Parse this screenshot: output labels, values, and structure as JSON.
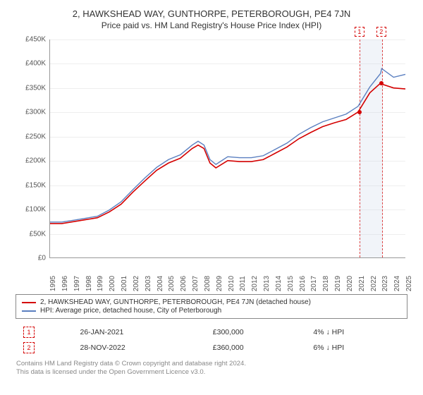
{
  "title": "2, HAWKSHEAD WAY, GUNTHORPE, PETERBOROUGH, PE4 7JN",
  "subtitle": "Price paid vs. HM Land Registry's House Price Index (HPI)",
  "chart": {
    "type": "line",
    "background_color": "#ffffff",
    "grid_color": "#eeeeee",
    "axis_color": "#999999",
    "label_fontsize": 10,
    "x_min": 1995,
    "x_max": 2025,
    "y_min": 0,
    "y_max": 450000,
    "y_ticks": [
      0,
      50000,
      100000,
      150000,
      200000,
      250000,
      300000,
      350000,
      400000,
      450000
    ],
    "y_tick_labels": [
      "£0",
      "£50K",
      "£100K",
      "£150K",
      "£200K",
      "£250K",
      "£300K",
      "£350K",
      "£400K",
      "£450K"
    ],
    "x_ticks": [
      1995,
      1996,
      1997,
      1998,
      1999,
      2000,
      2001,
      2002,
      2003,
      2004,
      2005,
      2006,
      2007,
      2008,
      2009,
      2010,
      2011,
      2012,
      2013,
      2014,
      2015,
      2016,
      2017,
      2018,
      2019,
      2020,
      2021,
      2022,
      2023,
      2024,
      2025
    ],
    "highlight_band": {
      "x_start": 2021.07,
      "x_end": 2022.91
    },
    "series": [
      {
        "name": "price_paid",
        "label": "2, HAWKSHEAD WAY, GUNTHORPE, PETERBOROUGH, PE4 7JN (detached house)",
        "color": "#d40000",
        "line_width": 1.6,
        "data": [
          [
            1995,
            70000
          ],
          [
            1996,
            70000
          ],
          [
            1997,
            74000
          ],
          [
            1998,
            78000
          ],
          [
            1999,
            82000
          ],
          [
            2000,
            94000
          ],
          [
            2001,
            110000
          ],
          [
            2002,
            135000
          ],
          [
            2003,
            158000
          ],
          [
            2004,
            180000
          ],
          [
            2005,
            195000
          ],
          [
            2006,
            205000
          ],
          [
            2007,
            225000
          ],
          [
            2007.5,
            232000
          ],
          [
            2008,
            225000
          ],
          [
            2008.5,
            195000
          ],
          [
            2009,
            185000
          ],
          [
            2010,
            200000
          ],
          [
            2011,
            198000
          ],
          [
            2012,
            198000
          ],
          [
            2013,
            202000
          ],
          [
            2014,
            215000
          ],
          [
            2015,
            228000
          ],
          [
            2016,
            245000
          ],
          [
            2017,
            258000
          ],
          [
            2018,
            270000
          ],
          [
            2019,
            278000
          ],
          [
            2020,
            285000
          ],
          [
            2021,
            300000
          ],
          [
            2022,
            340000
          ],
          [
            2022.91,
            360000
          ],
          [
            2023,
            358000
          ],
          [
            2024,
            350000
          ],
          [
            2025,
            348000
          ]
        ]
      },
      {
        "name": "hpi",
        "label": "HPI: Average price, detached house, City of Peterborough",
        "color": "#5a7fc0",
        "line_width": 1.4,
        "data": [
          [
            1995,
            73000
          ],
          [
            1996,
            73000
          ],
          [
            1997,
            77000
          ],
          [
            1998,
            81000
          ],
          [
            1999,
            85000
          ],
          [
            2000,
            98000
          ],
          [
            2001,
            115000
          ],
          [
            2002,
            140000
          ],
          [
            2003,
            164000
          ],
          [
            2004,
            186000
          ],
          [
            2005,
            202000
          ],
          [
            2006,
            212000
          ],
          [
            2007,
            232000
          ],
          [
            2007.5,
            240000
          ],
          [
            2008,
            232000
          ],
          [
            2008.5,
            202000
          ],
          [
            2009,
            192000
          ],
          [
            2010,
            208000
          ],
          [
            2011,
            206000
          ],
          [
            2012,
            206000
          ],
          [
            2013,
            210000
          ],
          [
            2014,
            223000
          ],
          [
            2015,
            236000
          ],
          [
            2016,
            254000
          ],
          [
            2017,
            268000
          ],
          [
            2018,
            280000
          ],
          [
            2019,
            288000
          ],
          [
            2020,
            296000
          ],
          [
            2021,
            312000
          ],
          [
            2022,
            352000
          ],
          [
            2022.91,
            380000
          ],
          [
            2023,
            390000
          ],
          [
            2024,
            372000
          ],
          [
            2025,
            378000
          ]
        ]
      }
    ],
    "markers": [
      {
        "n": "1",
        "x": 2021.07,
        "y": 300000,
        "color": "#d40000"
      },
      {
        "n": "2",
        "x": 2022.91,
        "y": 360000,
        "color": "#d40000"
      }
    ]
  },
  "legend": [
    {
      "color": "#d40000",
      "label": "2, HAWKSHEAD WAY, GUNTHORPE, PETERBOROUGH, PE4 7JN (detached house)"
    },
    {
      "color": "#5a7fc0",
      "label": "HPI: Average price, detached house, City of Peterborough"
    }
  ],
  "transactions": [
    {
      "n": "1",
      "color": "#d40000",
      "date": "26-JAN-2021",
      "price": "£300,000",
      "delta": "4% ↓ HPI"
    },
    {
      "n": "2",
      "color": "#d40000",
      "date": "28-NOV-2022",
      "price": "£360,000",
      "delta": "6% ↓ HPI"
    }
  ],
  "footnote_line1": "Contains HM Land Registry data © Crown copyright and database right 2024.",
  "footnote_line2": "This data is licensed under the Open Government Licence v3.0."
}
